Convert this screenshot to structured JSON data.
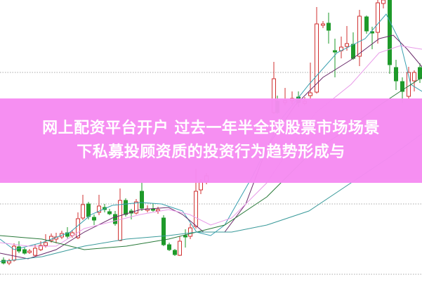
{
  "banner": {
    "line1": "网上配资平台开户 过去一年半全球股票市场场景",
    "line2": "下私募投顾资质的投资行为趋势形成与"
  },
  "colors": {
    "banner": "#f68cf2",
    "up_candle": "#d03030",
    "down_candle": "#1e9a2a",
    "gridline": "#aaaaaa",
    "ma_lines": [
      "#3aa0b0",
      "#6a2a6a",
      "#e89ae8",
      "#2a7a3a",
      "#3a9a9a"
    ]
  }
}
